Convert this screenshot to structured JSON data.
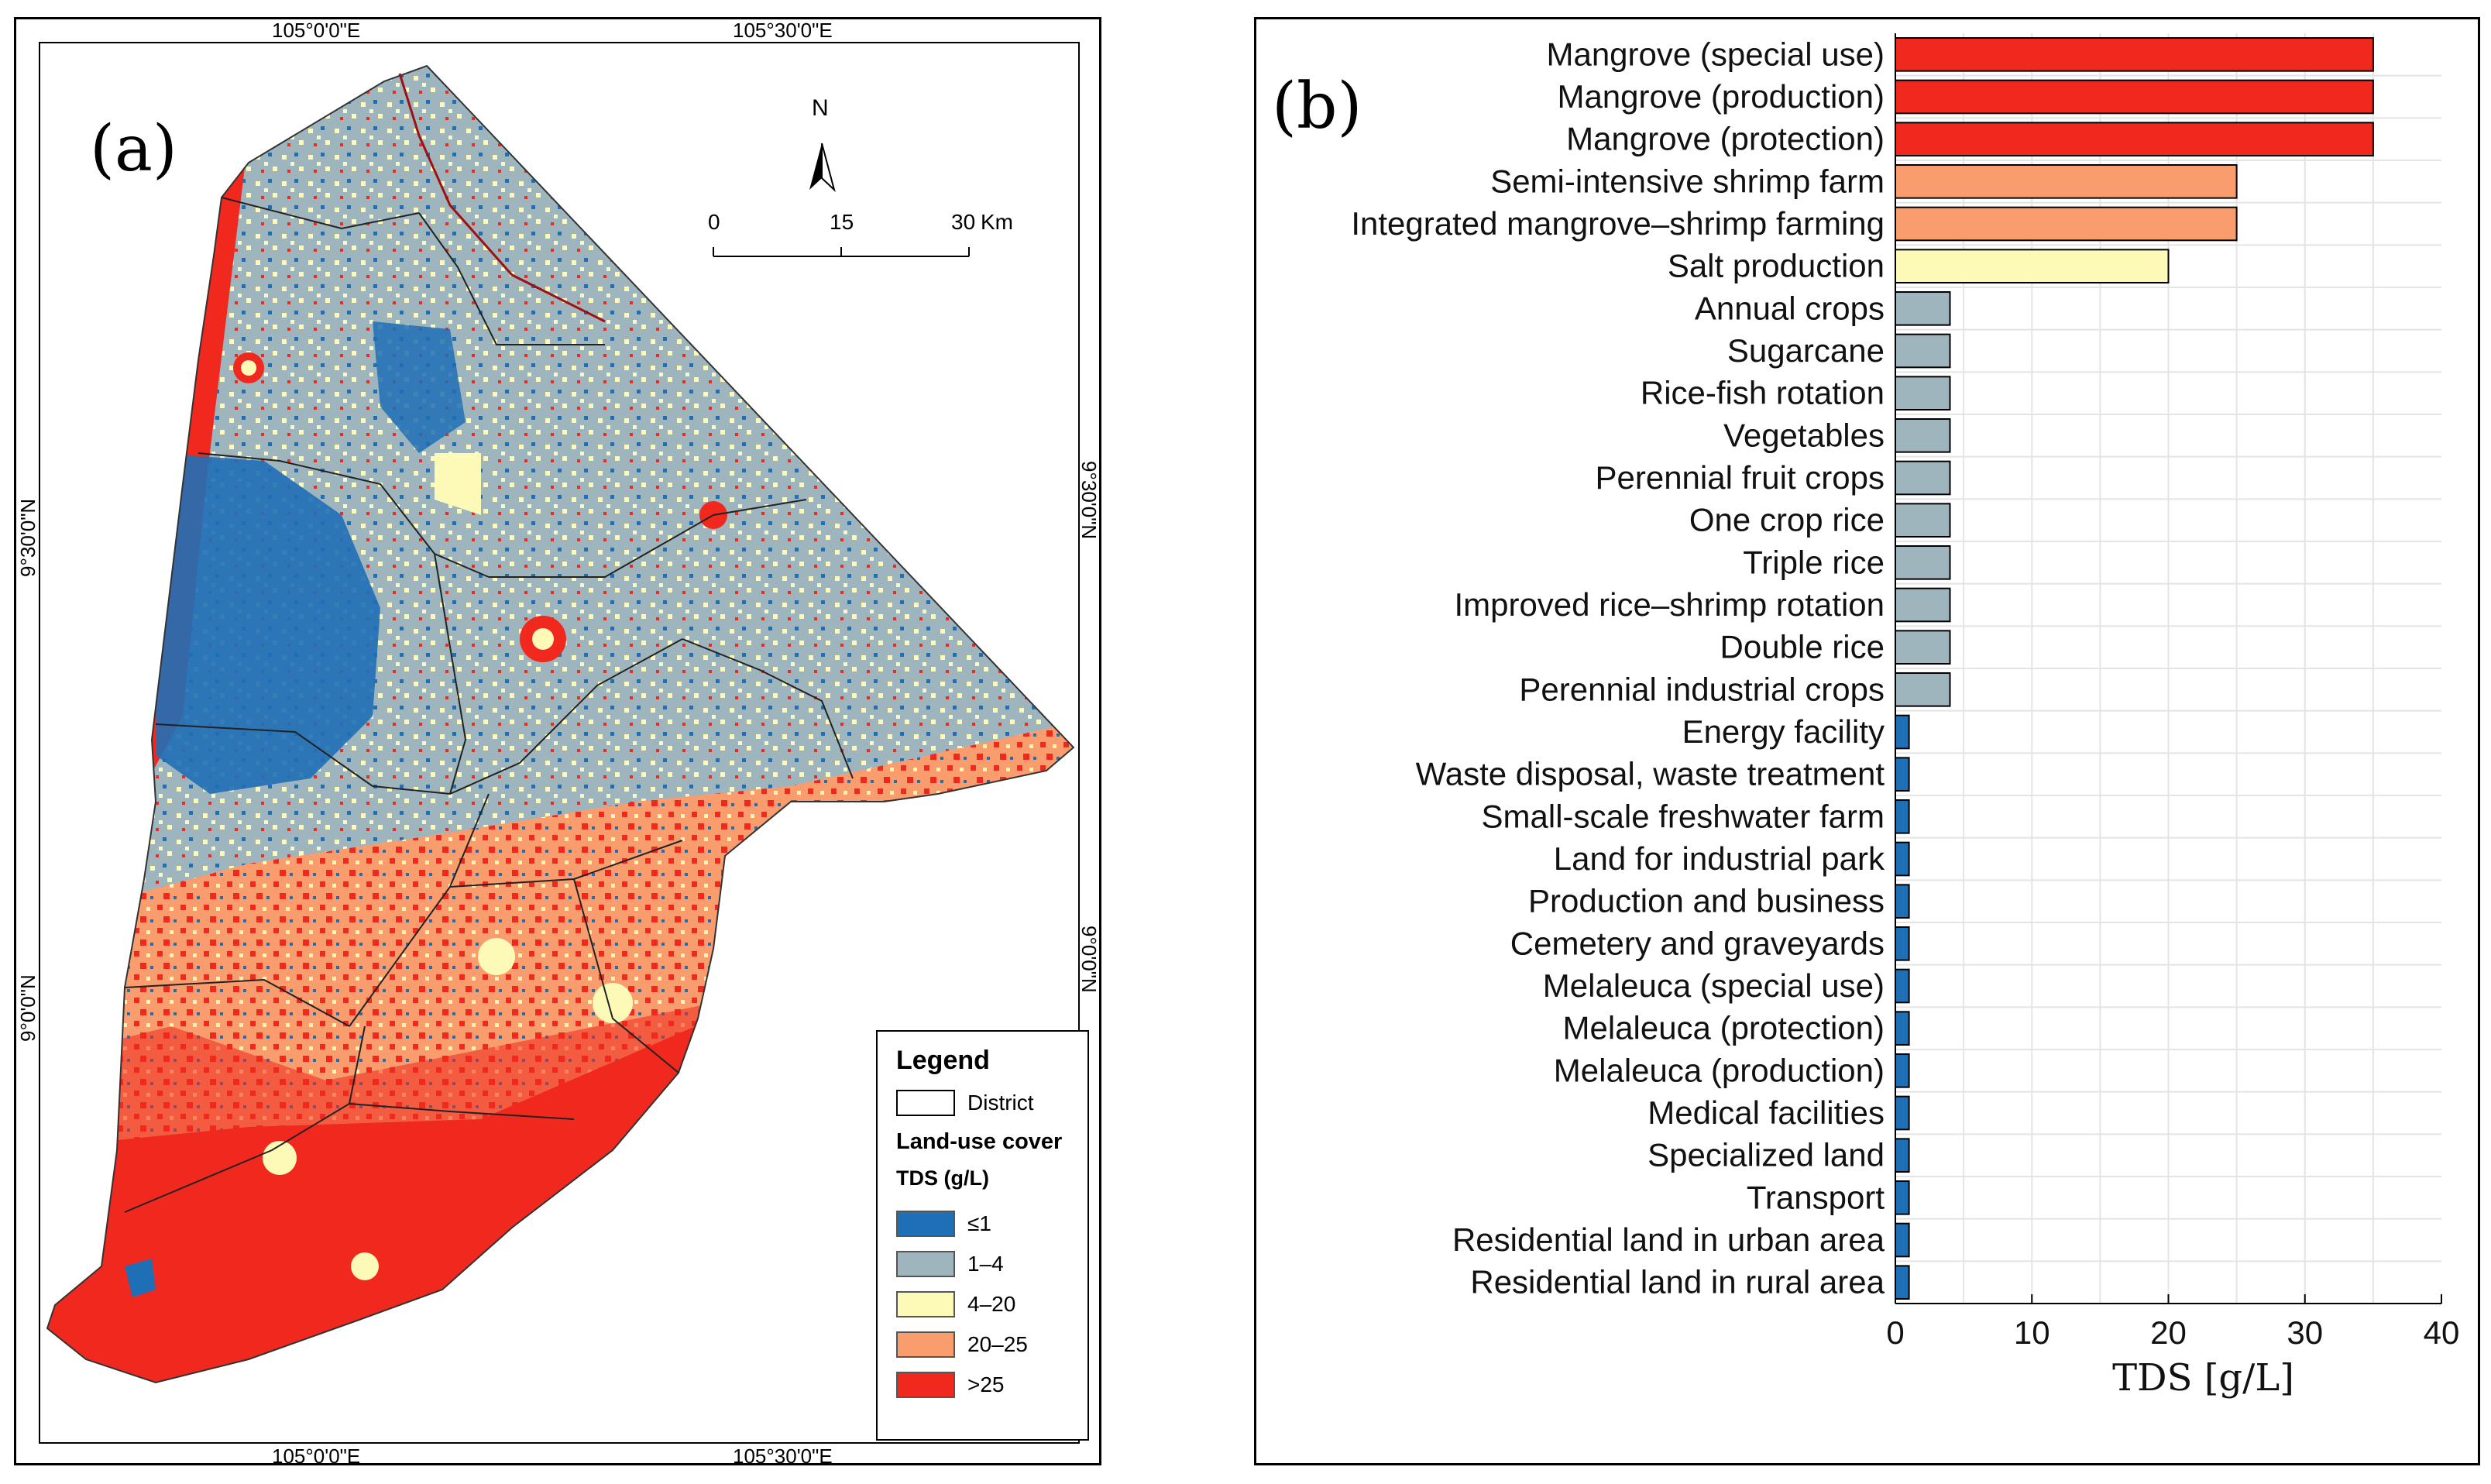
{
  "map": {
    "panel_label": "(a)",
    "coords": {
      "top_left": "105°0'0\"E",
      "top_right": "105°30'0\"E",
      "bottom_left": "105°0'0\"E",
      "bottom_right": "105°30'0\"E",
      "left_upper": "9°30'0\"N",
      "left_lower": "9°0'0\"N",
      "right_upper": "9°30'0\"N",
      "right_lower": "9°0'0\"N"
    },
    "north_label": "N",
    "scale": {
      "ticks": [
        "0",
        "15",
        "30"
      ],
      "unit": "Km"
    },
    "legend": {
      "title": "Legend",
      "district_label": "District",
      "land_use_label": "Land-use cover",
      "tds_label": "TDS (g/L)",
      "classes": [
        {
          "label": "≤1",
          "color": "#1f6fb6"
        },
        {
          "label": "1–4",
          "color": "#9fb5bd"
        },
        {
          "label": "4–20",
          "color": "#fdfab8"
        },
        {
          "label": "20–25",
          "color": "#f99c6e"
        },
        {
          "label": ">25",
          "color": "#f0281e"
        }
      ]
    }
  },
  "chart_data": {
    "type": "bar",
    "orientation": "horizontal",
    "panel_label": "(b)",
    "xlabel": "TDS [g/L]",
    "xlim": [
      0,
      40
    ],
    "xticks": [
      0,
      10,
      20,
      30,
      40
    ],
    "grid": true,
    "categories": [
      "Mangrove (special use)",
      "Mangrove (production)",
      "Mangrove (protection)",
      "Semi-intensive shrimp farm",
      "Integrated mangrove–shrimp farming",
      "Salt production",
      "Annual crops",
      "Sugarcane",
      "Rice-fish rotation",
      "Vegetables",
      "Perennial fruit crops",
      "One crop rice",
      "Triple rice",
      "Improved rice–shrimp rotation",
      "Double rice",
      "Perennial industrial crops",
      "Energy facility",
      "Waste disposal, waste treatment",
      "Small-scale freshwater farm",
      "Land for industrial park",
      "Production and business",
      "Cemetery and graveyards",
      "Melaleuca (special use)",
      "Melaleuca (protection)",
      "Melaleuca (production)",
      "Medical facilities",
      "Specialized land",
      "Transport",
      "Residential land in urban area",
      "Residential land in rural area"
    ],
    "values": [
      35,
      35,
      35,
      25,
      25,
      20,
      4,
      4,
      4,
      4,
      4,
      4,
      4,
      4,
      4,
      4,
      1,
      1,
      1,
      1,
      1,
      1,
      1,
      1,
      1,
      1,
      1,
      1,
      1,
      1
    ],
    "colors": [
      "#f0281e",
      "#f0281e",
      "#f0281e",
      "#f99c6e",
      "#f99c6e",
      "#fdfab8",
      "#9fb5bd",
      "#9fb5bd",
      "#9fb5bd",
      "#9fb5bd",
      "#9fb5bd",
      "#9fb5bd",
      "#9fb5bd",
      "#9fb5bd",
      "#9fb5bd",
      "#9fb5bd",
      "#1f6fb6",
      "#1f6fb6",
      "#1f6fb6",
      "#1f6fb6",
      "#1f6fb6",
      "#1f6fb6",
      "#1f6fb6",
      "#1f6fb6",
      "#1f6fb6",
      "#1f6fb6",
      "#1f6fb6",
      "#1f6fb6",
      "#1f6fb6",
      "#1f6fb6"
    ]
  }
}
